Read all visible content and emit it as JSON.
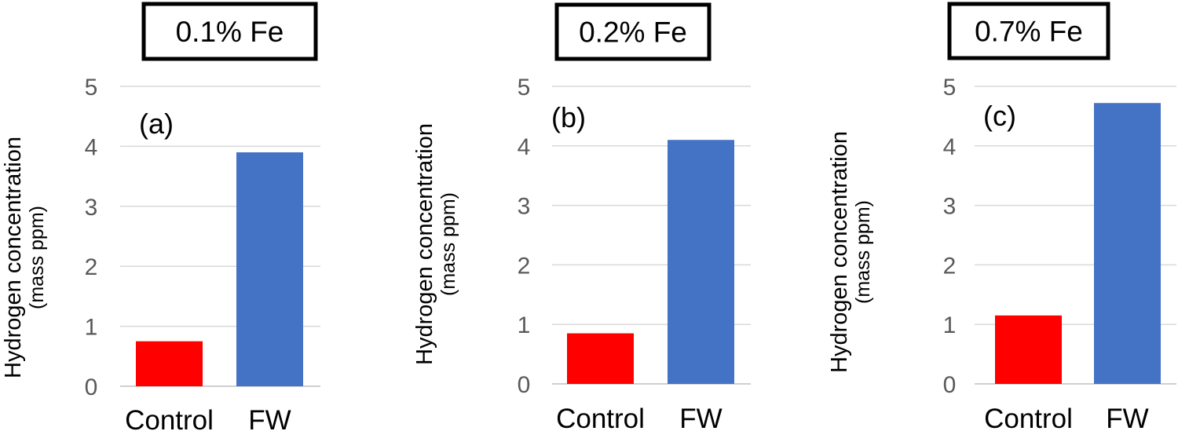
{
  "chart_data": [
    {
      "type": "bar",
      "title": "0.1% Fe",
      "panel_label": "(a)",
      "ylabel_line1": "Hydrogen concentration",
      "ylabel_line2": "(mass ppm)",
      "categories": [
        "Control",
        "FW"
      ],
      "values": [
        0.75,
        3.9
      ],
      "bar_colors": [
        "#ff0000",
        "#4472c4"
      ],
      "ylim": [
        0,
        5
      ],
      "yticks": [
        "0",
        "1",
        "2",
        "3",
        "4",
        "5"
      ],
      "grid": true,
      "legend": "none"
    },
    {
      "type": "bar",
      "title": "0.2% Fe",
      "panel_label": "(b)",
      "ylabel_line1": "Hydrogen concentration",
      "ylabel_line2": "(mass ppm)",
      "categories": [
        "Control",
        "FW"
      ],
      "values": [
        0.85,
        4.1
      ],
      "bar_colors": [
        "#ff0000",
        "#4472c4"
      ],
      "ylim": [
        0,
        5
      ],
      "yticks": [
        "0",
        "1",
        "2",
        "3",
        "4",
        "5"
      ],
      "grid": true,
      "legend": "none"
    },
    {
      "type": "bar",
      "title": "0.7% Fe",
      "panel_label": "(c)",
      "ylabel_line1": "Hydrogen concentration",
      "ylabel_line2": "(mass ppm)",
      "categories": [
        "Control",
        "FW"
      ],
      "values": [
        1.15,
        4.72
      ],
      "bar_colors": [
        "#ff0000",
        "#4472c4"
      ],
      "ylim": [
        0,
        5
      ],
      "yticks": [
        "0",
        "1",
        "2",
        "3",
        "4",
        "5"
      ],
      "grid": true,
      "legend": "none"
    }
  ]
}
